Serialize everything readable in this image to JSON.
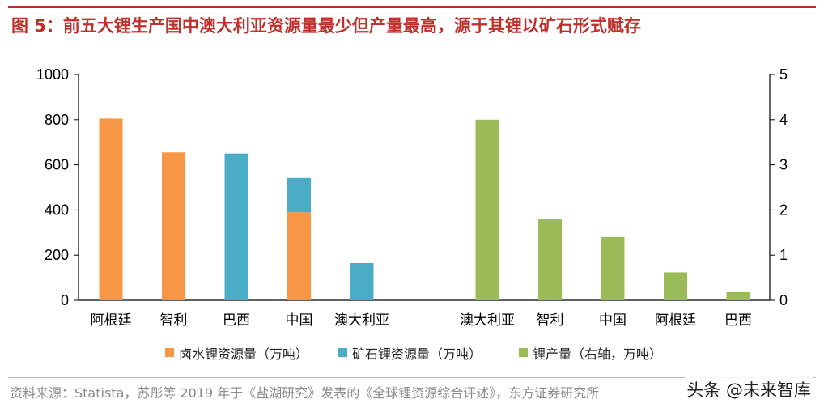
{
  "header": {
    "title": "图 5：前五大锂生产国中澳大利亚资源量最少但产量最高，源于其锂以矿石形式赋存"
  },
  "footer": {
    "source": "资料来源：Statista，苏彤等 2019 年于《盐湖研究》发表的《全球锂资源综合评述》，东方证券研究所",
    "watermark": "头条 @未来智库"
  },
  "colors": {
    "brine": "#f79646",
    "ore": "#4bacc6",
    "production": "#9bbb59",
    "title": "#c0302b"
  },
  "chart_data": {
    "type": "bar",
    "groups": [
      {
        "axis": "left",
        "stacked": true,
        "categories": [
          "阿根廷",
          "智利",
          "巴西",
          "中国",
          "澳大利亚"
        ],
        "series": [
          {
            "name": "卤水锂资源量（万吨）",
            "values": [
              805,
              655,
              0,
              390,
              0
            ]
          },
          {
            "name": "矿石锂资源量（万吨）",
            "values": [
              0,
              0,
              650,
              152,
              165
            ]
          }
        ]
      },
      {
        "axis": "right",
        "stacked": false,
        "categories": [
          "澳大利亚",
          "智利",
          "中国",
          "阿根廷",
          "巴西"
        ],
        "series": [
          {
            "name": "锂产量（右轴，万吨）",
            "values": [
              4.0,
              1.8,
              1.4,
              0.62,
              0.18
            ]
          }
        ]
      }
    ],
    "y_left": {
      "min": 0,
      "max": 1000,
      "ticks": [
        0,
        200,
        400,
        600,
        800,
        1000
      ]
    },
    "y_right": {
      "min": 0,
      "max": 5,
      "ticks": [
        0,
        1,
        2,
        3,
        4,
        5
      ]
    },
    "legend": {
      "position": "bottom",
      "items": [
        "卤水锂资源量（万吨）",
        "矿石锂资源量（万吨）",
        "锂产量（右轴，万吨）"
      ]
    },
    "grid": false
  }
}
